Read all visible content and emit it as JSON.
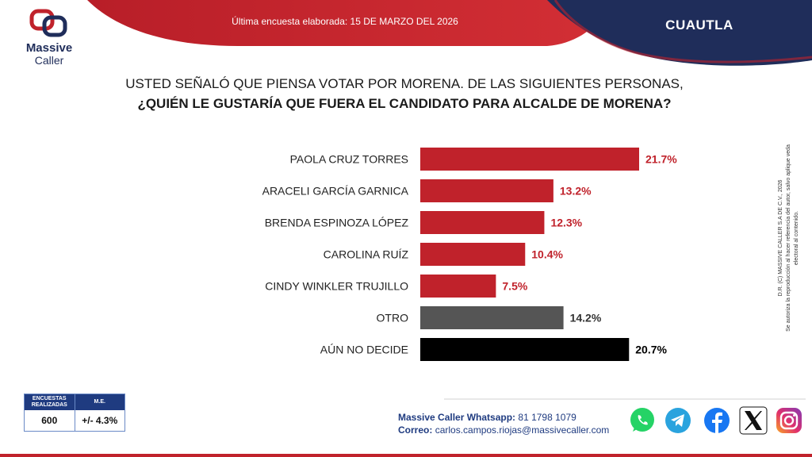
{
  "header": {
    "survey_date": "Última encuesta elaborada: 15 DE MARZO DEL 2026",
    "city": "CUAUTLA",
    "logo_line1": "Massive",
    "logo_line2": "Caller",
    "logo_tagline": "",
    "colors": {
      "red": "#c0222b",
      "navy": "#1f2d5a"
    }
  },
  "question": {
    "line1": "USTED SEÑALÓ QUE PIENSA VOTAR POR MORENA. DE LAS SIGUIENTES PERSONAS,",
    "line2": "¿QUIÉN LE GUSTARÍA QUE FUERA EL CANDIDATO PARA ALCALDE DE MORENA?"
  },
  "chart_data": {
    "type": "bar",
    "orientation": "horizontal",
    "categories": [
      "PAOLA CRUZ TORRES",
      "ARACELI GARCÍA GARNICA",
      "BRENDA ESPINOZA LÓPEZ",
      "CAROLINA RUÍZ",
      "CINDY WINKLER TRUJILLO",
      "OTRO",
      "AÚN NO DECIDE"
    ],
    "values": [
      21.7,
      13.2,
      12.3,
      10.4,
      7.5,
      14.2,
      20.7
    ],
    "value_labels": [
      "21.7%",
      "13.2%",
      "12.3%",
      "10.4%",
      "7.5%",
      "14.2%",
      "20.7%"
    ],
    "colors": [
      "#c0222b",
      "#c0222b",
      "#c0222b",
      "#c0222b",
      "#c0222b",
      "#555555",
      "#000000"
    ],
    "label_colors": [
      "#c0222b",
      "#c0222b",
      "#c0222b",
      "#c0222b",
      "#c0222b",
      "#333333",
      "#000000"
    ],
    "xlim": [
      0,
      21.7
    ],
    "grid": false,
    "legend": "none"
  },
  "side_note": {
    "line1": "D.R. (C) MASSIVE CALLER S.A DE C.V., 2026",
    "line2": "Se autoriza la reproducción al hacer referencia del autor, salvo aplique veda electoral al contenido."
  },
  "meta": {
    "surveys_label": "ENCUESTAS REALIZADAS",
    "surveys_value": "600",
    "me_label": "M.E.",
    "me_value": "+/- 4.3%"
  },
  "contact": {
    "whatsapp_label": "Massive Caller Whatsapp:",
    "whatsapp_value": "81 1798 1079",
    "email_label": "Correo:",
    "email_value": "carlos.campos.riojas@massivecaller.com"
  },
  "social": [
    "whatsapp-icon",
    "telegram-icon",
    "facebook-icon",
    "x-icon",
    "instagram-icon"
  ]
}
